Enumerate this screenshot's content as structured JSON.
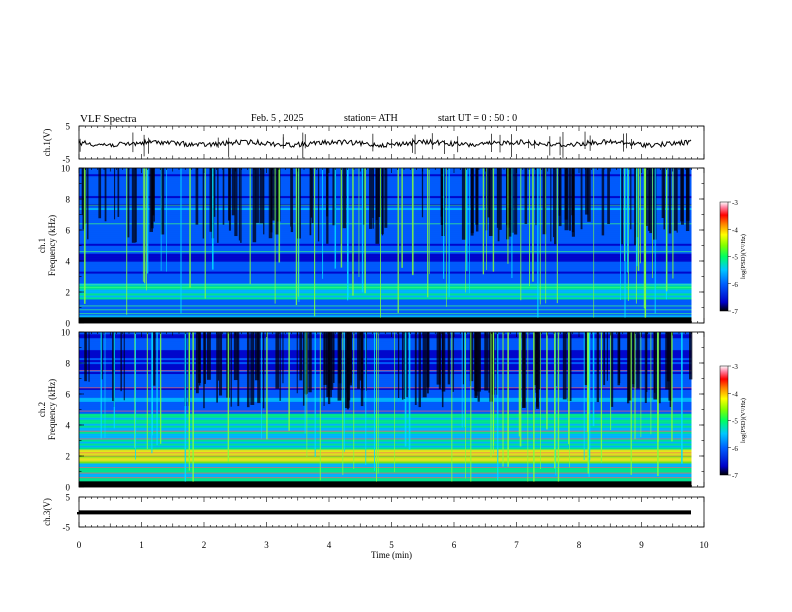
{
  "header": {
    "title": "VLF Spectra",
    "date": "Feb. 5 , 2025",
    "station": "station= ATH",
    "start": "start UT =  0 : 50 : 0"
  },
  "chart_data": [
    {
      "type": "line",
      "title": "",
      "ylabel": "ch.1(V)",
      "ylim": [
        -5,
        5
      ],
      "yticks": [
        "5",
        "-5"
      ],
      "xlim": [
        0,
        10
      ],
      "series": [
        {
          "values_note": "",
          "x": [
            0,
            9.8
          ],
          "mean": 0
        }
      ],
      "trace_color": "#000000"
    },
    {
      "type": "heatmap",
      "ylabel": "ch.1\nFrequency (kHz)",
      "ylim": [
        0,
        10
      ],
      "yticks": [
        "0",
        "2",
        "4",
        "6",
        "8",
        "10"
      ],
      "xlim": [
        0,
        10
      ],
      "data_end_min": 9.8,
      "colorbar": {
        "label": "log(PSD)(V²/Hz)",
        "range": [
          -7,
          -3
        ],
        "ticks": [
          "-3",
          "-4",
          "-5",
          "-6",
          "-7"
        ]
      }
    },
    {
      "type": "heatmap",
      "ylabel": "ch.2\nFrequency (kHz)",
      "ylim": [
        0,
        10
      ],
      "yticks": [
        "0",
        "2",
        "4",
        "6",
        "8",
        "10"
      ],
      "xlim": [
        0,
        10
      ],
      "data_end_min": 9.8,
      "colorbar": {
        "label": "log(PSD)(V²/Hz)",
        "range": [
          -7,
          -3
        ],
        "ticks": [
          "-3",
          "-4",
          "-5",
          "-6",
          "-7"
        ]
      }
    },
    {
      "type": "line",
      "ylabel": "ch.3(V)",
      "ylim": [
        -5,
        5
      ],
      "yticks": [
        "5",
        "-5"
      ],
      "xlim": [
        0,
        10
      ],
      "series": [
        {
          "x": [
            0,
            9.8
          ],
          "mean": 0
        }
      ],
      "trace_color": "#000000"
    }
  ],
  "xaxis": {
    "label": "Time (min)",
    "ticks": [
      "0",
      "1",
      "2",
      "3",
      "4",
      "5",
      "6",
      "7",
      "8",
      "9",
      "10"
    ]
  },
  "colors": {
    "colormap": [
      "#000000",
      "#0000c8",
      "#0060ff",
      "#00c8ff",
      "#00ff80",
      "#80ff00",
      "#ffff00",
      "#ff8000",
      "#ff0000",
      "#ff80a0",
      "#ffffff"
    ]
  }
}
